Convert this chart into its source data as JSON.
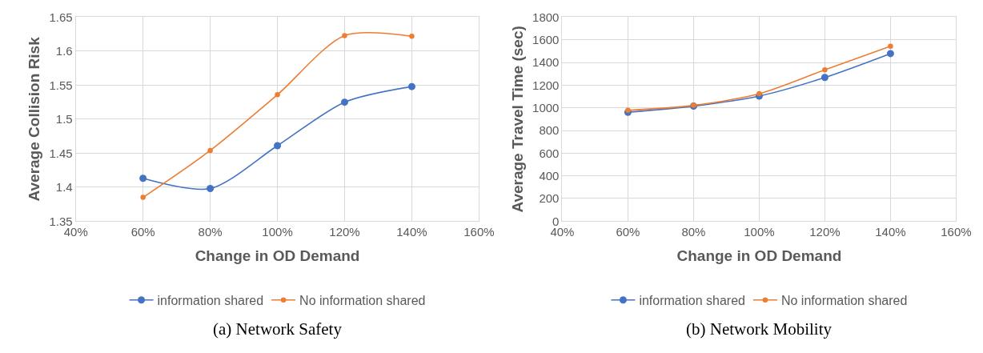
{
  "chart_data": [
    {
      "type": "line",
      "title": "(a) Network Safety",
      "xlabel": "Change in OD Demand",
      "ylabel": "Average Collision Risk",
      "x": [
        60,
        80,
        100,
        120,
        140
      ],
      "series": [
        {
          "name": "information shared",
          "color": "#4472c4",
          "values": [
            1.413,
            1.398,
            1.461,
            1.525,
            1.548
          ]
        },
        {
          "name": "No information shared",
          "color": "#ed7d31",
          "values": [
            1.385,
            1.454,
            1.536,
            1.623,
            1.622
          ]
        }
      ],
      "xlim": [
        40,
        160
      ],
      "xticks": [
        {
          "value": 40,
          "label": "40%"
        },
        {
          "value": 60,
          "label": "60%"
        },
        {
          "value": 80,
          "label": "80%"
        },
        {
          "value": 100,
          "label": "100%"
        },
        {
          "value": 120,
          "label": "120%"
        },
        {
          "value": 140,
          "label": "140%"
        },
        {
          "value": 160,
          "label": "160%"
        }
      ],
      "ylim": [
        1.35,
        1.65
      ],
      "yticks": [
        1.35,
        1.4,
        1.45,
        1.5,
        1.55,
        1.6,
        1.65
      ],
      "grid": true,
      "legend": "bottom",
      "marker": "circle",
      "line_style": "solid"
    },
    {
      "type": "line",
      "title": "(b) Network Mobility",
      "xlabel": "Change in OD Demand",
      "ylabel": "Average Travel Time (sec)",
      "x": [
        60,
        80,
        100,
        120,
        140
      ],
      "series": [
        {
          "name": "information shared",
          "color": "#4472c4",
          "values": [
            961,
            1015,
            1104,
            1268,
            1479
          ]
        },
        {
          "name": "No information shared",
          "color": "#ed7d31",
          "values": [
            978,
            1022,
            1125,
            1336,
            1544
          ]
        }
      ],
      "xlim": [
        40,
        160
      ],
      "xticks": [
        {
          "value": 40,
          "label": "40%"
        },
        {
          "value": 60,
          "label": "60%"
        },
        {
          "value": 80,
          "label": "80%"
        },
        {
          "value": 100,
          "label": "100%"
        },
        {
          "value": 120,
          "label": "120%"
        },
        {
          "value": 140,
          "label": "140%"
        },
        {
          "value": 160,
          "label": "160%"
        }
      ],
      "ylim": [
        0,
        1800
      ],
      "yticks": [
        0,
        200,
        400,
        600,
        800,
        1000,
        1200,
        1400,
        1600,
        1800
      ],
      "grid": true,
      "legend": "bottom",
      "marker": "circle",
      "line_style": "solid"
    }
  ]
}
